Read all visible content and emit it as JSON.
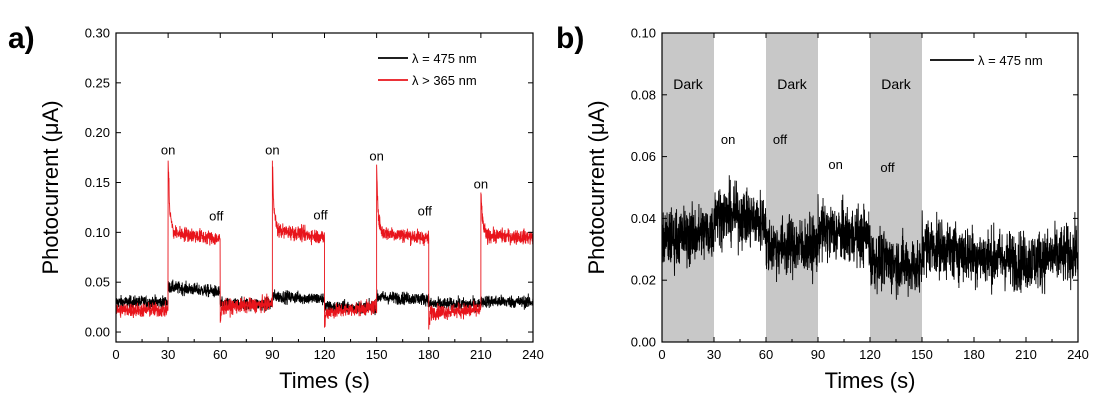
{
  "figure": {
    "panels": [
      {
        "label": "a)"
      },
      {
        "label": "b)"
      }
    ]
  },
  "chart_data": [
    {
      "type": "line",
      "panel": "a)",
      "xlabel": "Times (s)",
      "ylabel": "Photocurrent (μA)",
      "xlim": [
        0,
        240
      ],
      "ylim": [
        -0.01,
        0.3
      ],
      "xticks": [
        0,
        30,
        60,
        90,
        120,
        150,
        180,
        210,
        240
      ],
      "yticks": [
        0.0,
        0.05,
        0.1,
        0.15,
        0.2,
        0.25,
        0.3
      ],
      "ytick_labels": [
        "0.00",
        "0.05",
        "0.10",
        "0.15",
        "0.20",
        "0.25",
        "0.30"
      ],
      "legend_position": "top-right",
      "series": [
        {
          "name": "λ = 475 nm",
          "color": "#000000",
          "noise": 0.006,
          "x": [
            0,
            30,
            30,
            32,
            60,
            60,
            90,
            90,
            120,
            120,
            150,
            150,
            180,
            180,
            210,
            210,
            240
          ],
          "y": [
            0.03,
            0.03,
            0.045,
            0.045,
            0.04,
            0.028,
            0.028,
            0.036,
            0.033,
            0.025,
            0.025,
            0.035,
            0.033,
            0.028,
            0.028,
            0.031,
            0.03
          ]
        },
        {
          "name": "λ > 365 nm",
          "color": "#e8141b",
          "noise": 0.007,
          "x": [
            0,
            30,
            30,
            31,
            33,
            60,
            60,
            61,
            90,
            90,
            91,
            93,
            120,
            120,
            121,
            150,
            150,
            151,
            153,
            180,
            180,
            181,
            210,
            210,
            211,
            213,
            240
          ],
          "y": [
            0.022,
            0.022,
            0.172,
            0.12,
            0.1,
            0.093,
            0.01,
            0.025,
            0.028,
            0.172,
            0.12,
            0.102,
            0.095,
            0.005,
            0.02,
            0.025,
            0.168,
            0.115,
            0.1,
            0.094,
            0.005,
            0.02,
            0.022,
            0.14,
            0.11,
            0.097,
            0.095
          ]
        }
      ],
      "annotations": [
        {
          "text": "on",
          "x": 30,
          "y": 0.178
        },
        {
          "text": "off",
          "x": 60,
          "y": 0.112
        },
        {
          "text": "on",
          "x": 90,
          "y": 0.178
        },
        {
          "text": "off",
          "x": 120,
          "y": 0.113
        },
        {
          "text": "on",
          "x": 150,
          "y": 0.172
        },
        {
          "text": "off",
          "x": 180,
          "y": 0.117
        },
        {
          "text": "on",
          "x": 210,
          "y": 0.144
        }
      ]
    },
    {
      "type": "line",
      "panel": "b)",
      "xlabel": "Times (s)",
      "ylabel": "Photocurrent (μA)",
      "xlim": [
        0,
        240
      ],
      "ylim": [
        0.0,
        0.1
      ],
      "xticks": [
        0,
        30,
        60,
        90,
        120,
        150,
        180,
        210,
        240
      ],
      "yticks": [
        0.0,
        0.02,
        0.04,
        0.06,
        0.08,
        0.1
      ],
      "ytick_labels": [
        "0.00",
        "0.02",
        "0.04",
        "0.06",
        "0.08",
        "0.10"
      ],
      "legend_position": "top-right",
      "shaded_regions": [
        {
          "label": "Dark",
          "x0": 0,
          "x1": 30,
          "color": "#c8c8c8"
        },
        {
          "label": "Dark",
          "x0": 60,
          "x1": 90,
          "color": "#c8c8c8"
        },
        {
          "label": "Dark",
          "x0": 120,
          "x1": 150,
          "color": "#c8c8c8"
        }
      ],
      "series": [
        {
          "name": "λ = 475 nm",
          "color": "#000000",
          "noise": 0.009,
          "x": [
            0,
            30,
            30,
            60,
            60,
            90,
            90,
            120,
            120,
            150,
            150,
            180,
            210,
            240
          ],
          "y": [
            0.033,
            0.036,
            0.042,
            0.039,
            0.031,
            0.031,
            0.036,
            0.034,
            0.027,
            0.024,
            0.032,
            0.028,
            0.026,
            0.029
          ]
        }
      ],
      "annotations": [
        {
          "text": "on",
          "x": 34,
          "y": 0.064
        },
        {
          "text": "off",
          "x": 64,
          "y": 0.064
        },
        {
          "text": "on",
          "x": 96,
          "y": 0.056
        },
        {
          "text": "off",
          "x": 126,
          "y": 0.055
        }
      ]
    }
  ]
}
